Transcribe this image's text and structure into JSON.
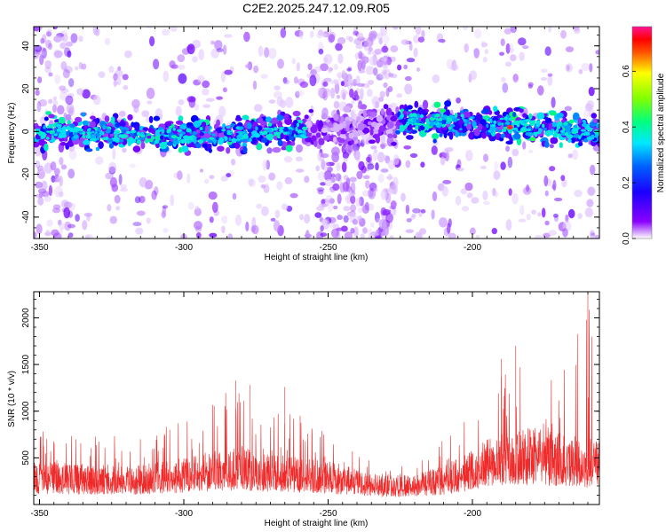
{
  "title": "C2E2.2025.247.12.09.R05",
  "chart_data": [
    {
      "type": "heatmap",
      "title": "C2E2.2025.247.12.09.R05",
      "xlabel": "Height of straight line (km)",
      "ylabel": "Frequency (Hz)",
      "xlim": [
        -352,
        -156
      ],
      "ylim": [
        -50,
        49
      ],
      "xticks": [
        -350,
        -300,
        -250,
        -200
      ],
      "xtick_labels": [
        "-350",
        "-300",
        "-250",
        "-200"
      ],
      "yticks": [
        -40,
        -20,
        0,
        20,
        40
      ],
      "ytick_labels": [
        "-40",
        "-20",
        "0",
        "20",
        "40"
      ],
      "band_center_hz": [
        {
          "x": -350,
          "y": 0
        },
        {
          "x": -300,
          "y": -2
        },
        {
          "x": -250,
          "y": 1
        },
        {
          "x": -220,
          "y": 5
        },
        {
          "x": -200,
          "y": 4
        },
        {
          "x": -180,
          "y": 2
        },
        {
          "x": -160,
          "y": 0
        }
      ],
      "peak": {
        "x": -187,
        "y": 2,
        "amplitude": 0.72
      },
      "colorbar": {
        "label": "Normalized spectral amplitude",
        "range": [
          0.0,
          0.76
        ],
        "ticks": [
          0.0,
          0.2,
          0.4,
          0.6
        ],
        "tick_labels": [
          "0.0",
          "0.2",
          "0.4",
          "0.6"
        ],
        "colors": [
          "#ffffff",
          "#7a00ff",
          "#0000ff",
          "#00e0ff",
          "#00ff60",
          "#ffff00",
          "#ff0000",
          "#ff1493"
        ]
      }
    },
    {
      "type": "line",
      "xlabel": "Height of straight line (km)",
      "ylabel": "SNR (10 * v/v)",
      "xlim": [
        -352,
        -156
      ],
      "ylim": [
        0,
        2280
      ],
      "xticks": [
        -350,
        -300,
        -250,
        -200
      ],
      "xtick_labels": [
        "-350",
        "-300",
        "-250",
        "-200"
      ],
      "yticks": [
        500,
        1000,
        1500,
        2000
      ],
      "ytick_labels": [
        "500",
        "1000",
        "1500",
        "2000"
      ],
      "color": "#ef2a2a",
      "envelope": {
        "x": [
          -352,
          -340,
          -330,
          -320,
          -310,
          -300,
          -290,
          -280,
          -270,
          -260,
          -250,
          -240,
          -230,
          -220,
          -210,
          -200,
          -190,
          -180,
          -170,
          -160,
          -156
        ],
        "mean": [
          260,
          240,
          230,
          230,
          250,
          280,
          320,
          340,
          300,
          280,
          260,
          210,
          170,
          180,
          230,
          330,
          440,
          460,
          430,
          400,
          380
        ],
        "max": [
          880,
          780,
          760,
          720,
          800,
          900,
          1180,
          1330,
          1060,
          960,
          760,
          560,
          360,
          500,
          700,
          1100,
          1650,
          1700,
          1400,
          2270,
          1200
        ]
      },
      "spikes": [
        {
          "x": -282,
          "y": 1330
        },
        {
          "x": -277,
          "y": 1280
        },
        {
          "x": -265,
          "y": 1260
        },
        {
          "x": -190,
          "y": 1560
        },
        {
          "x": -185,
          "y": 1700
        },
        {
          "x": -160,
          "y": 2270
        }
      ]
    }
  ]
}
